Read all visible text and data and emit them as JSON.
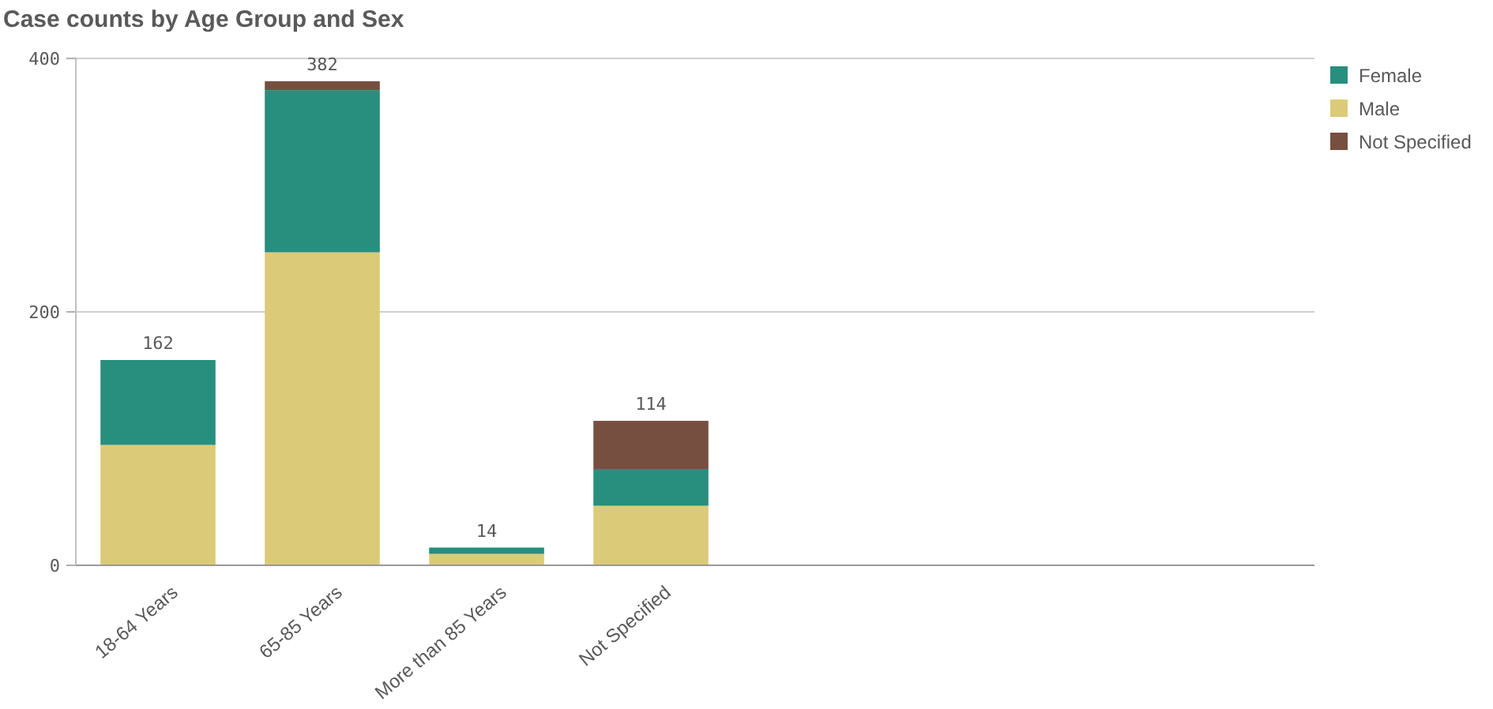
{
  "chart_data": {
    "type": "bar",
    "title": "Case counts by Age Group and Sex",
    "categories": [
      "18-64 Years",
      "65-85 Years",
      "More than 85 Years",
      "Not Specified"
    ],
    "stacked": true,
    "series": [
      {
        "name": "Male",
        "color": "#dbcb78",
        "values": [
          95,
          247,
          9,
          47
        ]
      },
      {
        "name": "Female",
        "color": "#288e7d",
        "values": [
          67,
          128,
          5,
          29
        ]
      },
      {
        "name": "Not Specified",
        "color": "#774f41",
        "values": [
          0,
          7,
          0,
          38
        ]
      }
    ],
    "totals": [
      "162",
      "382",
      "14",
      "114"
    ],
    "ylim": [
      0,
      400
    ],
    "yticks": [
      0,
      200,
      400
    ],
    "grid": "y",
    "legend": "top right"
  }
}
